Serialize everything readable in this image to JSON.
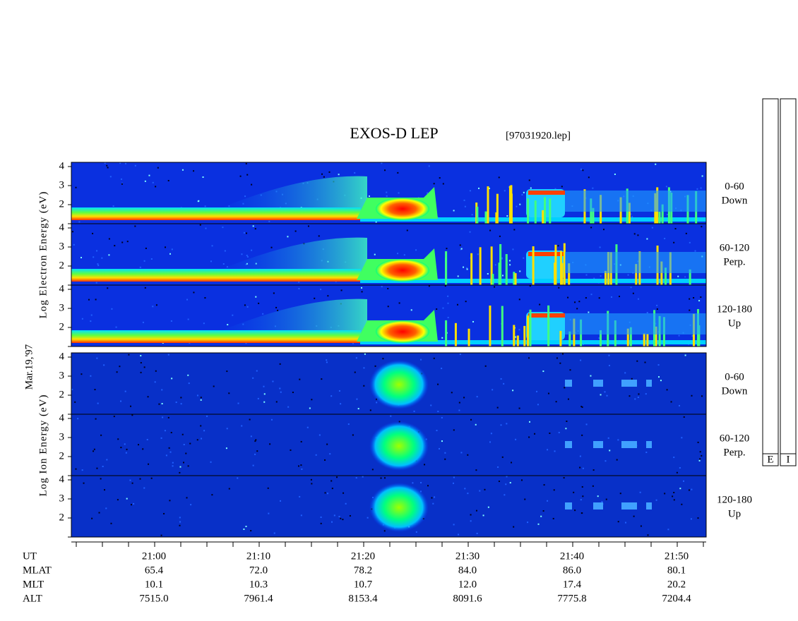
{
  "title": "EXOS-D LEP",
  "file": "[97031920.lep]",
  "date": "Mar.19,'97",
  "electron_axis_label": "Log Electron Energy (eV)",
  "ion_axis_label": "Log Ion Energy (eV)",
  "energy_ticks": [
    "4",
    "3",
    "2"
  ],
  "pitch_panels": [
    {
      "range": "0-60",
      "direction": "Down"
    },
    {
      "range": "60-120",
      "direction": "Perp."
    },
    {
      "range": "120-180",
      "direction": "Up"
    }
  ],
  "colorbars": [
    "E",
    "I"
  ],
  "footer": [
    {
      "label": "UT",
      "values": [
        "21:00",
        "21:10",
        "21:20",
        "21:30",
        "21:40",
        "21:50"
      ]
    },
    {
      "label": "MLAT",
      "values": [
        "65.4",
        "72.0",
        "78.2",
        "84.0",
        "86.0",
        "80.1"
      ]
    },
    {
      "label": "MLT",
      "values": [
        "10.1",
        "10.3",
        "10.7",
        "12.0",
        "17.4",
        "20.2"
      ]
    },
    {
      "label": "ALT",
      "values": [
        "7515.0",
        "7961.4",
        "8153.4",
        "8091.6",
        "7775.8",
        "7204.4"
      ]
    }
  ]
}
